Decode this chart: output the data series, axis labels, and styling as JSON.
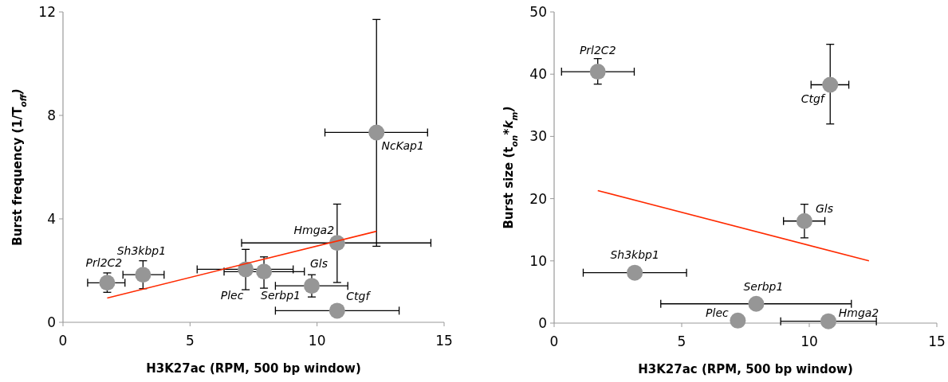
{
  "chart_data": [
    {
      "type": "scatter",
      "xlabel": "H3K27ac (RPM, 500 bp window)",
      "ylabel": "Burst frequency (1/T$_{off}$)",
      "xlim": [
        0,
        15
      ],
      "xticks": [
        0,
        5,
        10,
        15
      ],
      "ylim": [
        0,
        12
      ],
      "yticks": [
        0,
        4,
        8,
        12
      ],
      "marker": "circle",
      "series": [
        {
          "color": "#969696",
          "x": [
            1.74,
            3.15,
            7.19,
            7.91,
            9.79,
            10.79,
            10.79,
            12.34
          ],
          "values": [
            1.53,
            1.84,
            2.05,
            1.96,
            1.41,
            0.45,
            3.07,
            7.34
          ],
          "errors": [
            [
              1.16,
              1.91
            ],
            [
              1.3,
              2.38
            ],
            [
              1.26,
              2.82
            ],
            [
              1.32,
              2.53
            ],
            [
              0.98,
              1.84
            ],
            null,
            [
              1.54,
              4.57
            ],
            [
              2.94,
              11.71
            ]
          ],
          "xerrors": [
            [
              0.97,
              2.44
            ],
            [
              2.36,
              3.98
            ],
            [
              5.28,
              9.06
            ],
            [
              6.34,
              9.5
            ],
            [
              8.36,
              11.21
            ],
            [
              8.36,
              13.23
            ],
            [
              7.03,
              14.48
            ],
            [
              10.31,
              14.35
            ]
          ]
        },
        {
          "type": "line",
          "color": "#ff2a00",
          "x": [
            1.74,
            12.34
          ],
          "values": [
            0.94,
            3.52
          ],
          "line_style": "solid",
          "marker": "none"
        }
      ],
      "annotations": [
        {
          "text": "Prl2C2",
          "x": 1.74,
          "y": 1.53
        },
        {
          "text": "Sh3kbp1",
          "x": 3.15,
          "y": 1.84
        },
        {
          "text": "Plec",
          "x": 7.19,
          "y": 2.05
        },
        {
          "text": "Serbp1",
          "x": 7.91,
          "y": 1.96
        },
        {
          "text": "Gls",
          "x": 9.79,
          "y": 1.41
        },
        {
          "text": "Ctgf",
          "x": 10.79,
          "y": 0.45
        },
        {
          "text": "Hmga2",
          "x": 10.79,
          "y": 3.07
        },
        {
          "text": "NcKap1",
          "x": 12.34,
          "y": 7.34
        }
      ]
    },
    {
      "type": "scatter",
      "xlabel": "H3K27ac (RPM, 500 bp window)",
      "ylabel": "Burst size (t$_{on}$*k$_{m}$)",
      "xlim": [
        0,
        15
      ],
      "xticks": [
        0,
        5,
        10,
        15
      ],
      "ylim": [
        0,
        50
      ],
      "yticks": [
        0,
        10,
        20,
        30,
        40,
        50
      ],
      "marker": "circle",
      "series": [
        {
          "color": "#969696",
          "x": [
            1.71,
            3.16,
            7.2,
            7.92,
            9.81,
            10.82,
            10.75
          ],
          "values": [
            40.4,
            8.1,
            0.4,
            3.1,
            16.4,
            38.3,
            0.3
          ],
          "errors": [
            [
              38.4,
              42.5
            ],
            null,
            null,
            null,
            [
              13.7,
              19.1
            ],
            [
              32.0,
              44.8
            ],
            null
          ],
          "xerrors": [
            [
              0.29,
              3.14
            ],
            [
              1.14,
              5.19
            ],
            null,
            [
              4.18,
              11.65
            ],
            [
              8.99,
              10.61
            ],
            [
              10.07,
              11.55
            ],
            [
              8.88,
              12.63
            ]
          ]
        },
        {
          "type": "line",
          "color": "#ff2a00",
          "x": [
            1.71,
            12.34
          ],
          "values": [
            21.3,
            10.0
          ],
          "line_style": "solid",
          "marker": "none"
        }
      ],
      "annotations": [
        {
          "text": "Prl2C2",
          "x": 1.71,
          "y": 40.4
        },
        {
          "text": "Sh3kbp1",
          "x": 3.16,
          "y": 8.1
        },
        {
          "text": "Plec",
          "x": 7.2,
          "y": 0.4
        },
        {
          "text": "Serbp1",
          "x": 7.92,
          "y": 3.1
        },
        {
          "text": "Gls",
          "x": 9.81,
          "y": 16.4
        },
        {
          "text": "Ctgf",
          "x": 10.82,
          "y": 38.3
        },
        {
          "text": "Hmga2",
          "x": 10.75,
          "y": 0.3
        }
      ]
    }
  ]
}
